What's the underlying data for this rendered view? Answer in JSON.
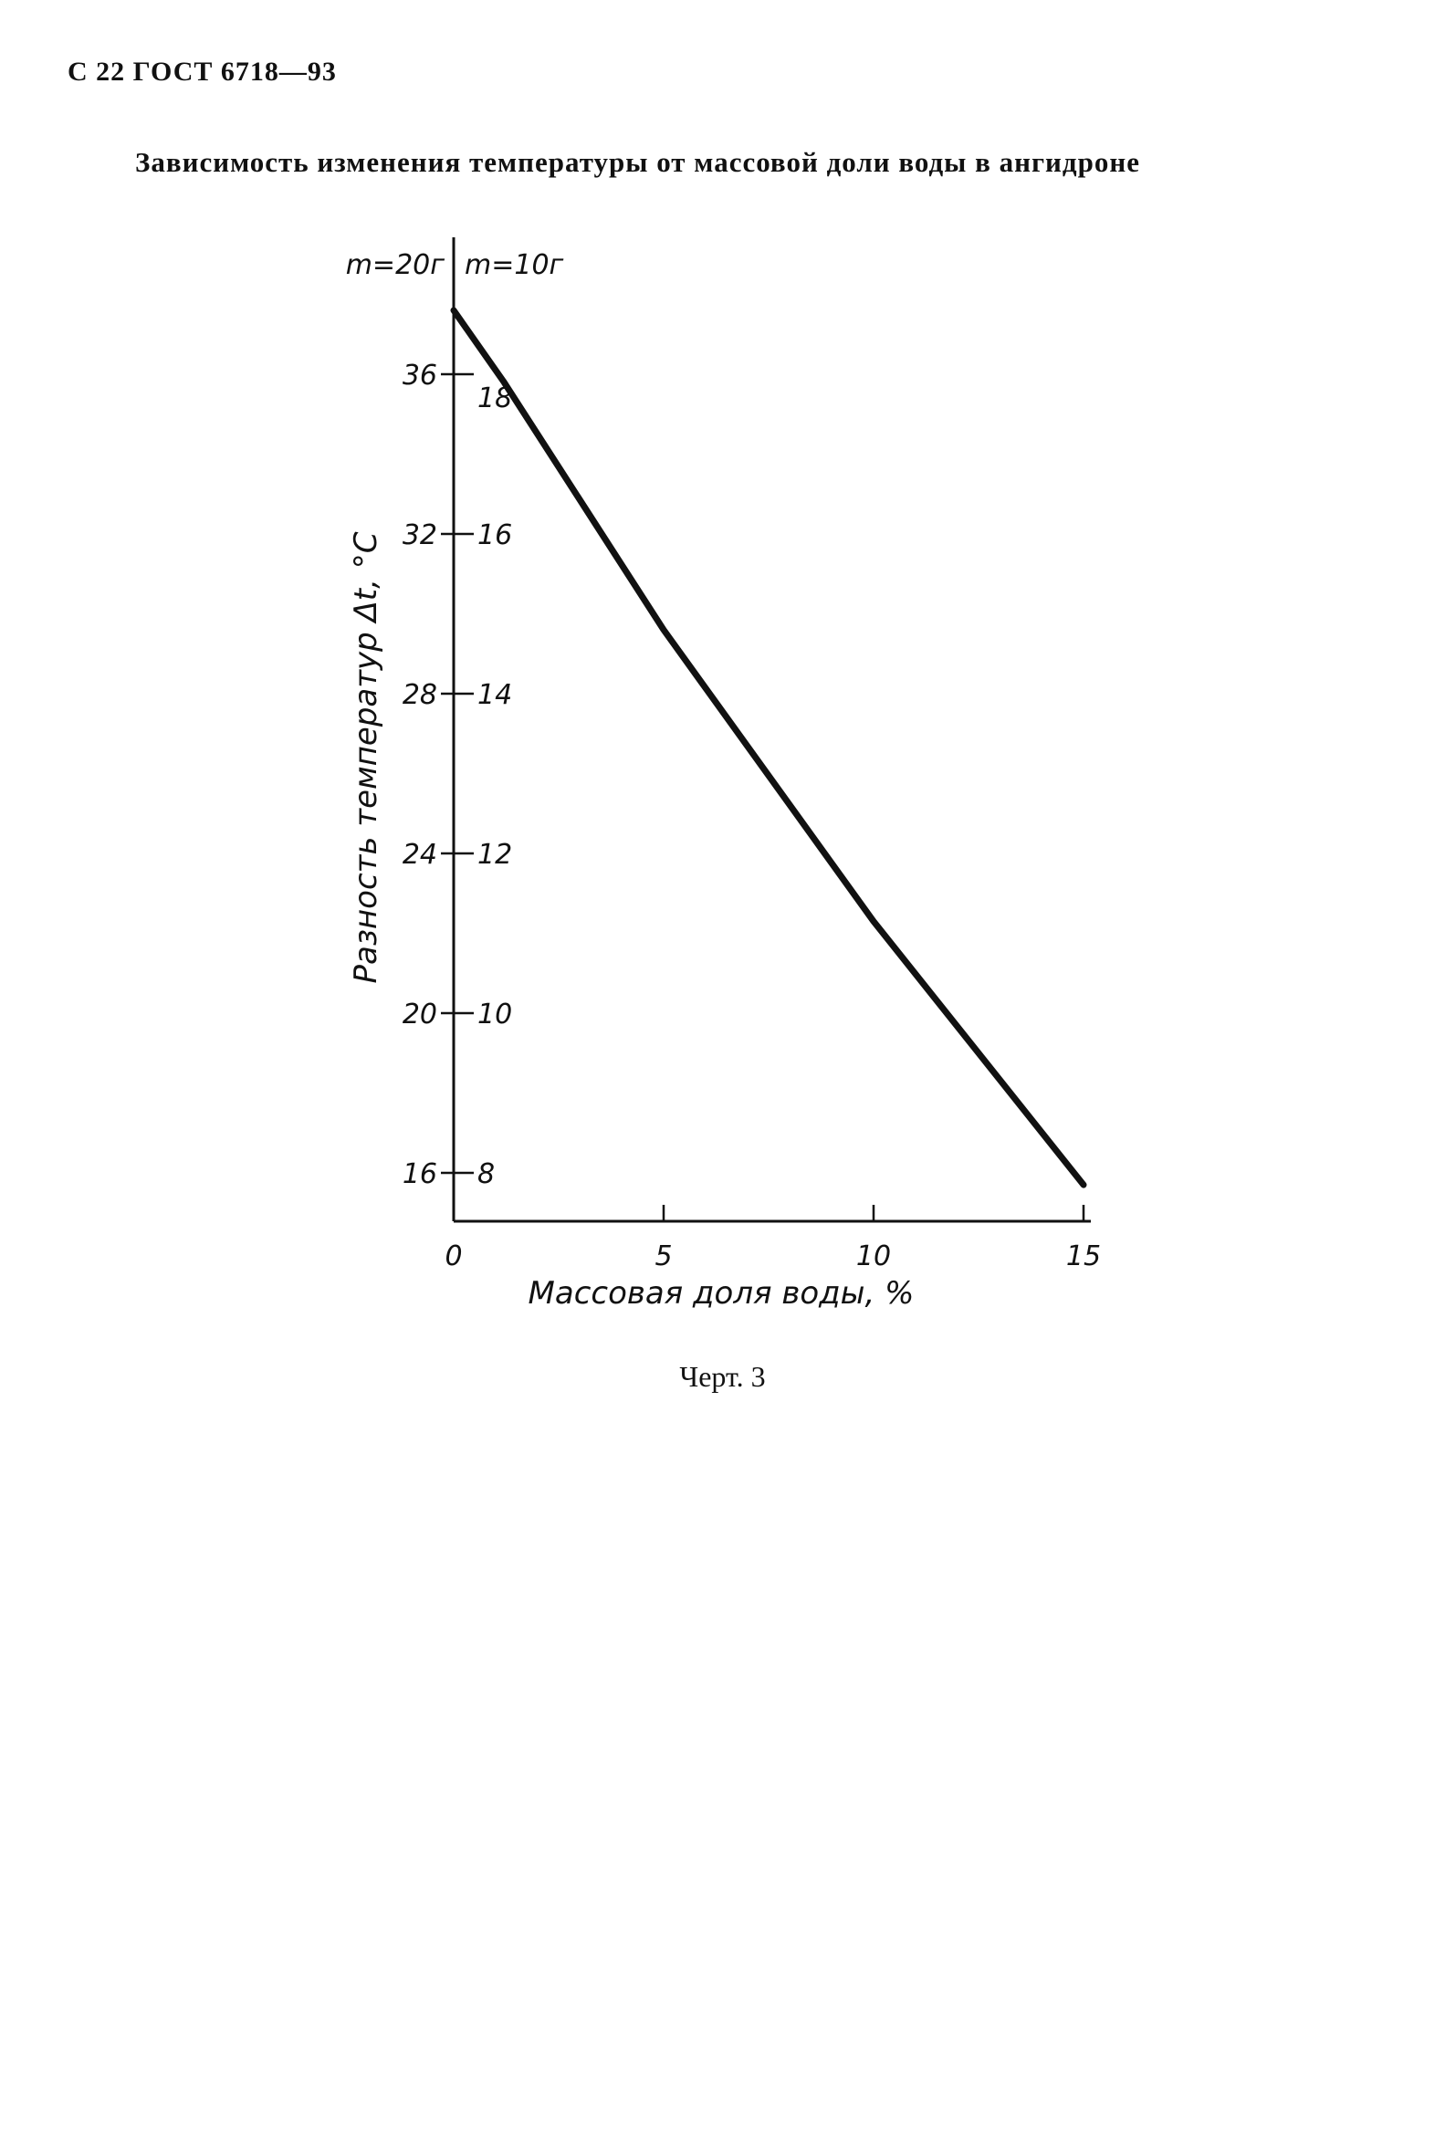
{
  "header": {
    "page_ref": "С 22 ГОСТ 6718—93"
  },
  "title": "Зависимость изменения температуры от массовой доли воды в ангидроне",
  "caption": "Черт. 3",
  "chart_data": {
    "type": "line",
    "title": "Зависимость изменения температуры от массовой доли воды в ангидроне",
    "xlabel": "Массовая доля воды, %",
    "ylabel": "Разность температур Δt, °С",
    "xlim": [
      0,
      15
    ],
    "ylim_left": [
      14.6,
      40
    ],
    "ylim_right": [
      7.3,
      20
    ],
    "x_ticks": [
      0,
      5,
      10,
      15
    ],
    "x_tick_labels": [
      "0",
      "5",
      "10",
      "15"
    ],
    "y_axis_headers": {
      "left": "m=20г",
      "right": "m=10г"
    },
    "y_ticks_left": [
      16,
      20,
      24,
      28,
      32,
      36
    ],
    "y_tick_labels_left": [
      "16",
      "20",
      "24",
      "28",
      "32",
      "36"
    ],
    "y_ticks_right": [
      8,
      10,
      12,
      14,
      16,
      18
    ],
    "y_tick_labels_right": [
      "8",
      "10",
      "12",
      "14",
      "16",
      "18"
    ],
    "grid": false,
    "legend": "none",
    "series": [
      {
        "x": [
          0,
          1.2,
          5,
          10,
          15
        ],
        "y": [
          37.6,
          35.8,
          29.6,
          22.3,
          15.7
        ]
      }
    ]
  }
}
